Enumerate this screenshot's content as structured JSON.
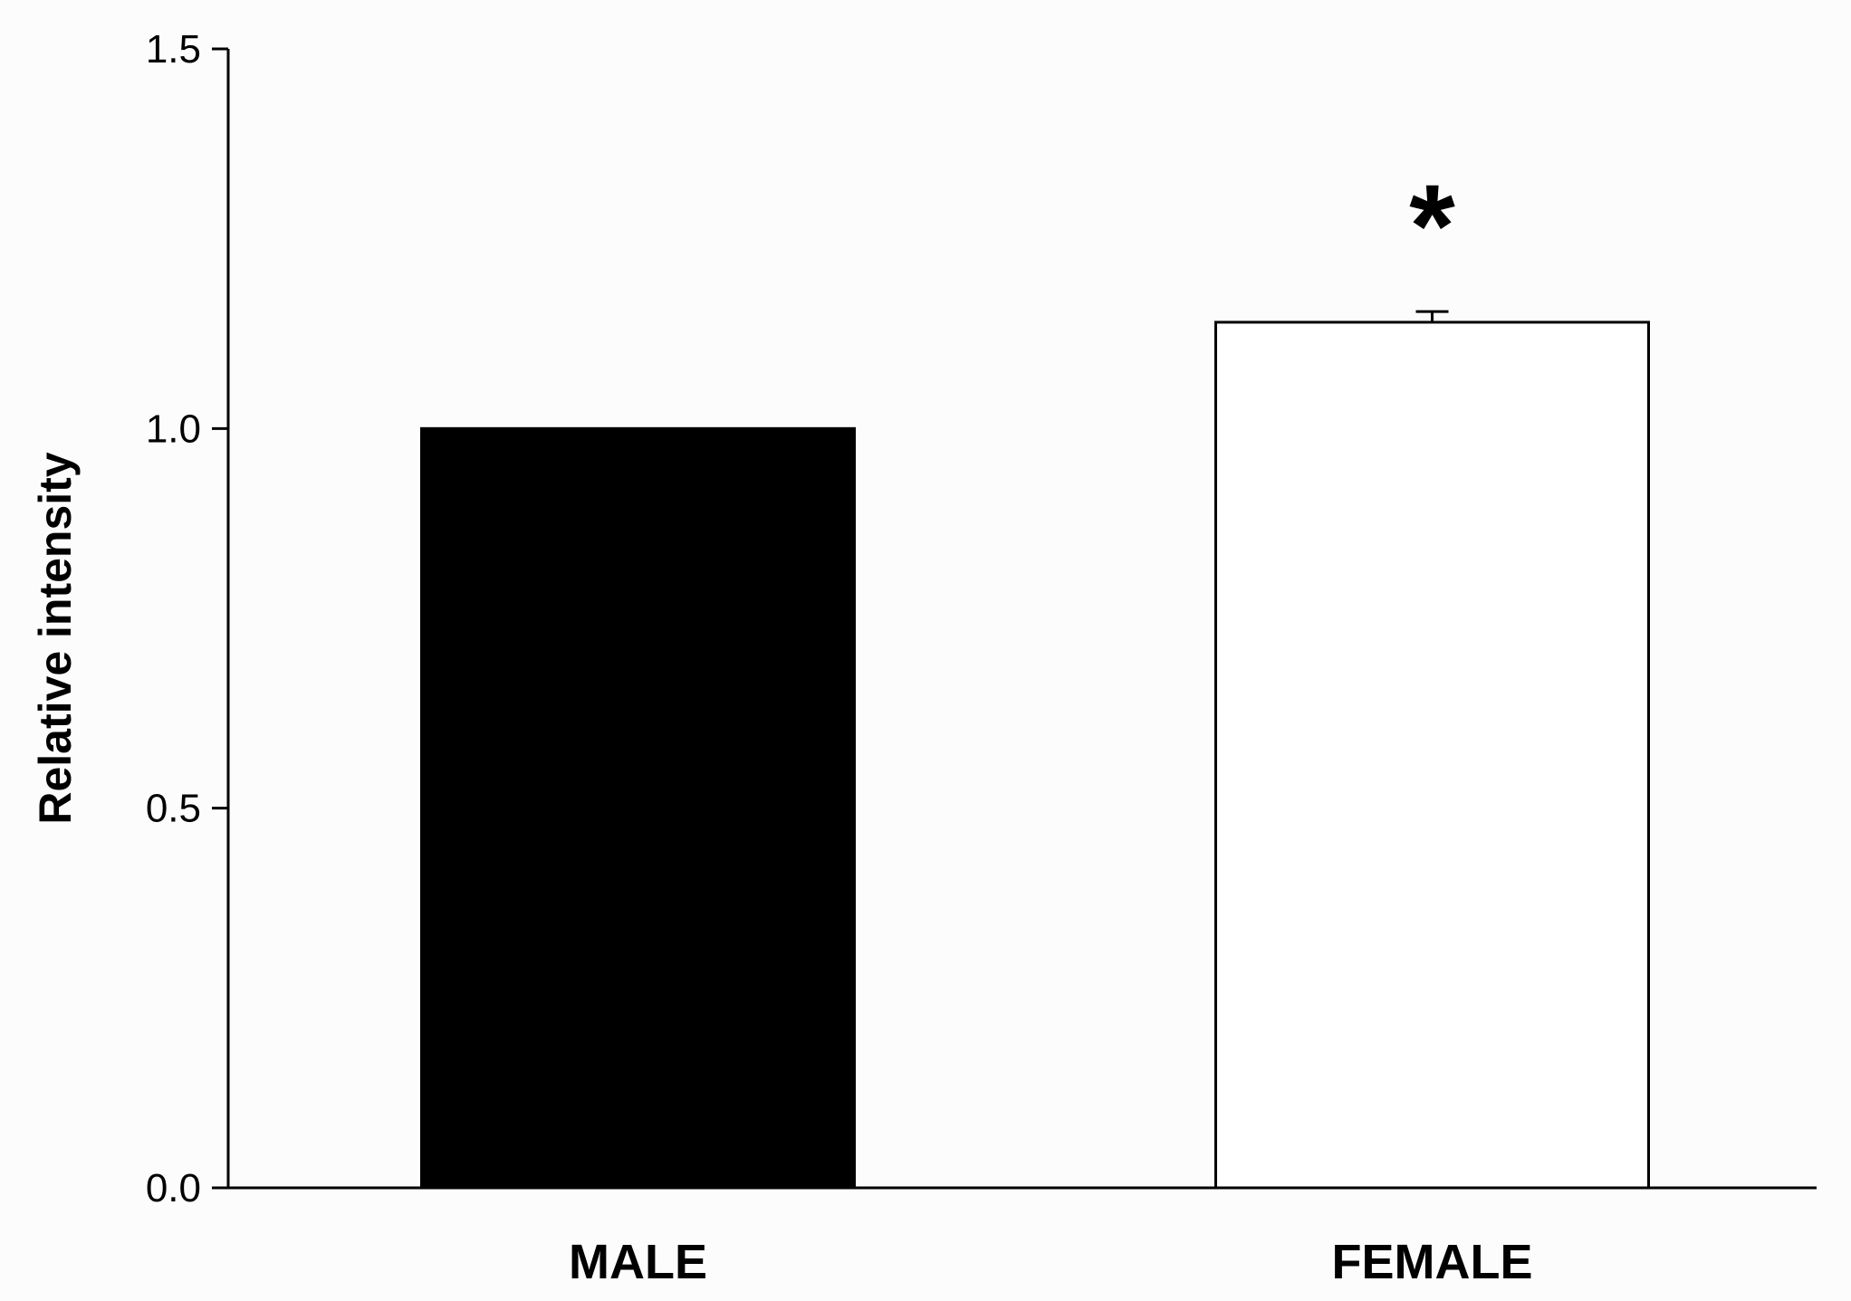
{
  "chart_data": {
    "type": "bar",
    "title": "",
    "xlabel": "",
    "ylabel": "Relative intensity",
    "ylim": [
      0,
      1.5
    ],
    "yticks": [
      0.0,
      0.5,
      1.0,
      1.5
    ],
    "ytick_labels": [
      "0.0",
      "0.5",
      "1.0",
      "1.5"
    ],
    "categories": [
      "MALE",
      "FEMALE"
    ],
    "values": [
      1.0,
      1.14
    ],
    "error_bars": [
      null,
      0.014
    ],
    "bar_fill_colors": [
      "#000000",
      "#ffffff"
    ],
    "bar_edge_color": "#000000",
    "annotations": [
      {
        "category": "FEMALE",
        "text": "*"
      }
    ],
    "grid": false,
    "legend": "none"
  }
}
